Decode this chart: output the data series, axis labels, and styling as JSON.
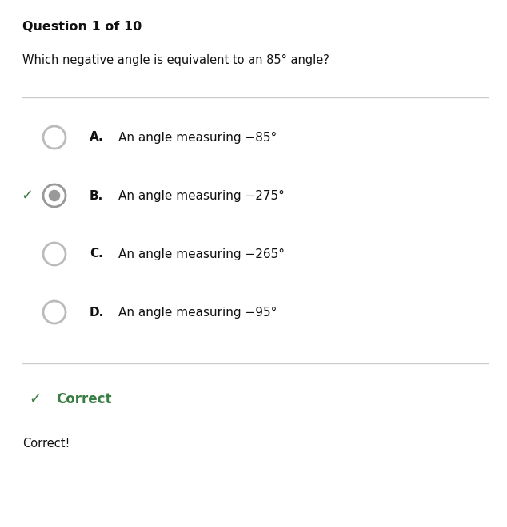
{
  "title": "Question 1 of 10",
  "question": "Which negative angle is equivalent to an 85° angle?",
  "options": [
    {
      "label": "A.",
      "text": "An angle measuring −85°",
      "selected": false
    },
    {
      "label": "B.",
      "text": "An angle measuring −275°",
      "selected": true
    },
    {
      "label": "C.",
      "text": "An angle measuring −265°",
      "selected": false
    },
    {
      "label": "D.",
      "text": "An angle measuring −95°",
      "selected": false
    }
  ],
  "result_label": "Correct",
  "result_text": "Correct!",
  "bg_color": "#ffffff",
  "text_color": "#111111",
  "green_color": "#3a7d44",
  "title_fontsize": 11.5,
  "question_fontsize": 10.5,
  "option_fontsize": 11.0,
  "result_fontsize": 12.0,
  "result_text_fontsize": 10.5,
  "separator_color": "#cccccc",
  "radio_unsel_edge": "#bbbbbb",
  "radio_sel_fill": "#999999",
  "radio_sel_edge": "#999999"
}
